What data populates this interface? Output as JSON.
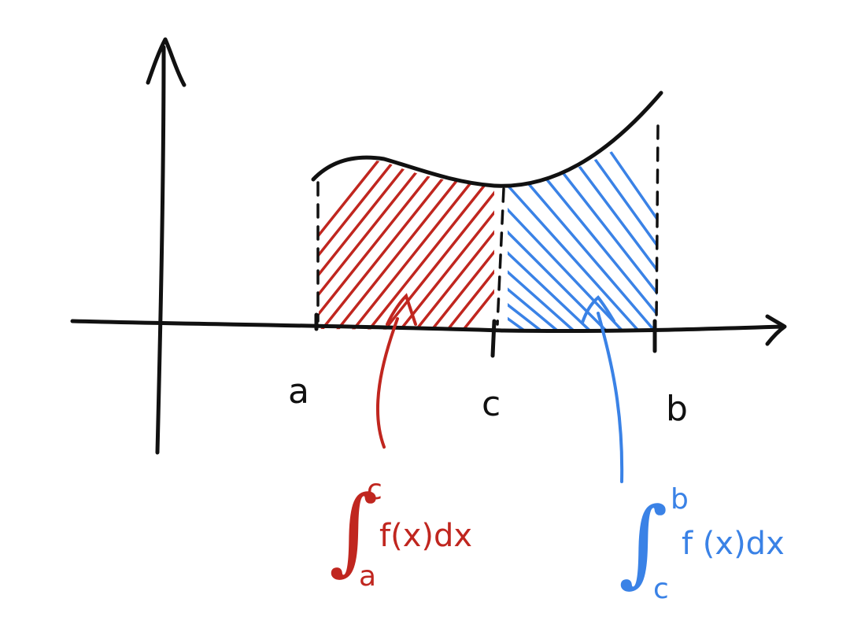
{
  "labels": {
    "a": "a",
    "c": "c",
    "b": "b"
  },
  "integral_left": {
    "upper": "c",
    "lower": "a",
    "integrand": "f(x)dx",
    "color": "#c0261f"
  },
  "integral_right": {
    "upper": "b",
    "lower": "c",
    "integrand": "f (x)dx",
    "color": "#3a82e6"
  }
}
